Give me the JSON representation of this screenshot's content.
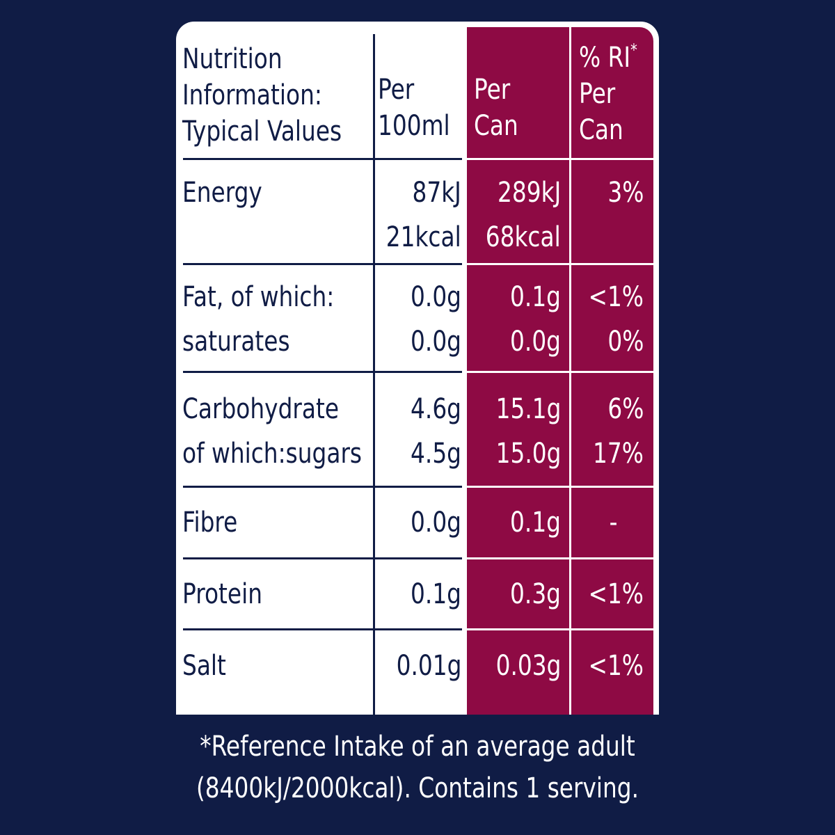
{
  "table": {
    "headers": {
      "label": [
        "Nutrition",
        "Information:",
        "Typical Values"
      ],
      "per100": [
        "Per",
        "100ml"
      ],
      "percan": [
        "Per",
        "Can"
      ],
      "ri": [
        "% RI",
        "*",
        "Per",
        "Can"
      ]
    },
    "rows": [
      {
        "name": "energy",
        "labels": [
          "Energy"
        ],
        "per100": [
          "87kJ",
          "21kcal"
        ],
        "percan": [
          "289kJ",
          "68kcal"
        ],
        "ri": [
          "3%"
        ]
      },
      {
        "name": "fat",
        "labels": [
          "Fat, of which:",
          "saturates"
        ],
        "per100": [
          "0.0g",
          "0.0g"
        ],
        "percan": [
          "0.1g",
          "0.0g"
        ],
        "ri": [
          "<1%",
          "0%"
        ]
      },
      {
        "name": "carbohydrate",
        "labels": [
          "Carbohydrate",
          "of which:sugars"
        ],
        "per100": [
          "4.6g",
          "4.5g"
        ],
        "percan": [
          "15.1g",
          "15.0g"
        ],
        "ri": [
          "6%",
          "17%"
        ]
      },
      {
        "name": "fibre",
        "labels": [
          "Fibre"
        ],
        "per100": [
          "0.0g"
        ],
        "percan": [
          "0.1g"
        ],
        "ri": [
          "-"
        ]
      },
      {
        "name": "protein",
        "labels": [
          "Protein"
        ],
        "per100": [
          "0.1g"
        ],
        "percan": [
          "0.3g"
        ],
        "ri": [
          "<1%"
        ]
      },
      {
        "name": "salt",
        "labels": [
          "Salt"
        ],
        "per100": [
          "0.01g"
        ],
        "percan": [
          "0.03g"
        ],
        "ri": [
          "<1%"
        ]
      }
    ]
  },
  "footer": {
    "lines": [
      "*Reference Intake of an average adult",
      "(8400kJ/2000kcal). Contains 1 serving."
    ]
  },
  "colors": {
    "background": "#101c45",
    "panel": "#ffffff",
    "accent": "#8e0a44"
  }
}
